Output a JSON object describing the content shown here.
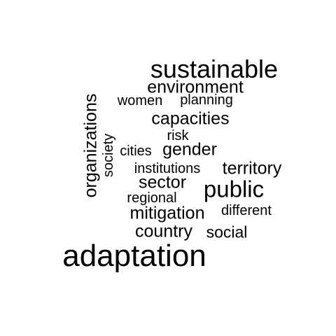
{
  "words": {
    "sustainable": "sustainable",
    "environment": "environment",
    "women": "women",
    "planning": "planning",
    "capacities": "capacities",
    "risk": "risk",
    "gender": "gender",
    "cities": "cities",
    "institutions": "institutions",
    "territory": "territory",
    "sector": "sector",
    "public": "public",
    "regional": "regional",
    "mitigation": "mitigation",
    "different": "different",
    "country": "country",
    "social": "social",
    "adaptation": "adaptation",
    "organizations": "organizations",
    "society": "society"
  },
  "colors": {
    "text": "#000000",
    "background": "#ffffff"
  }
}
